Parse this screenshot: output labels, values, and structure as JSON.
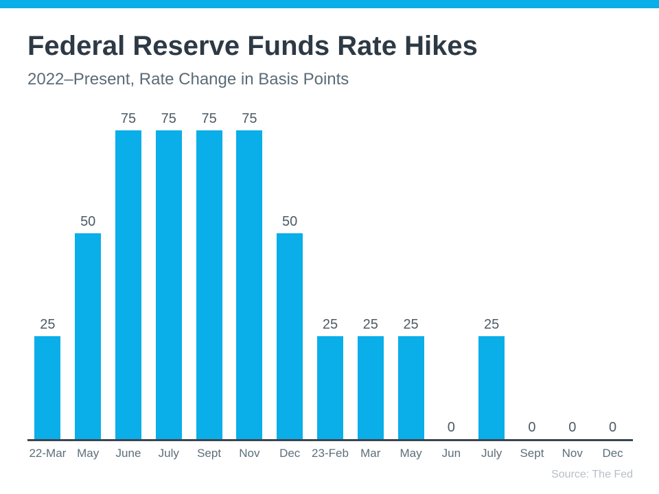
{
  "header": {
    "title": "Federal Reserve Funds Rate Hikes",
    "subtitle": "2022–Present, Rate Change in Basis Points"
  },
  "footer": {
    "source": "Source: The Fed"
  },
  "colors": {
    "accent": "#0AAEE9",
    "bar": "#0AAEE9",
    "title_text": "#2D3A45",
    "subtitle_text": "#5B6B76",
    "value_label": "#4D5A64",
    "axis_line": "#3A444E",
    "tick_label": "#5C6E7A",
    "source_text": "#B7BEC5"
  },
  "chart_data": {
    "type": "bar",
    "title": "Federal Reserve Funds Rate Hikes",
    "subtitle": "2022–Present, Rate Change in Basis Points",
    "categories": [
      "22-Mar",
      "May",
      "June",
      "July",
      "Sept",
      "Nov",
      "Dec",
      "23-Feb",
      "Mar",
      "May",
      "Jun",
      "July",
      "Sept",
      "Nov",
      "Dec"
    ],
    "values": [
      25,
      50,
      75,
      75,
      75,
      75,
      50,
      25,
      25,
      25,
      0,
      25,
      0,
      0,
      0
    ],
    "xlabel": "",
    "ylabel": "",
    "ylim": [
      0,
      75
    ],
    "grid": false,
    "legend_position": "none",
    "data_labels": true,
    "bar_color": "#0AAEE9",
    "source": "Source: The Fed"
  }
}
